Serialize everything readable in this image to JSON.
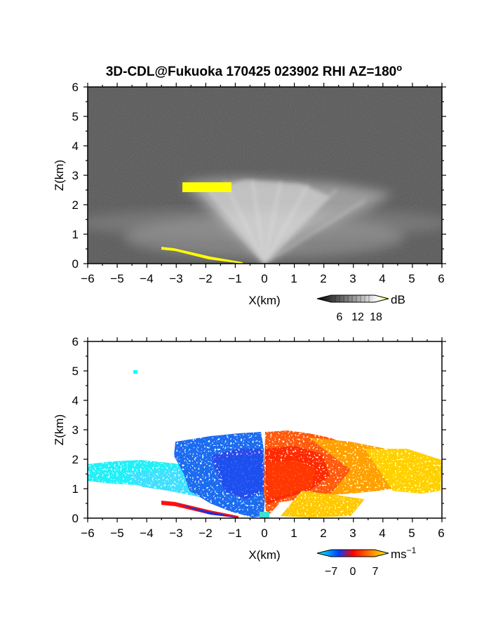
{
  "figure": {
    "title": "3D-CDL@Fukuoka 170425 023902 RHI AZ=180",
    "title_superscript": "o"
  },
  "chart_data": [
    {
      "type": "heatmap",
      "name": "reflectivity-panel",
      "xlabel": "X(km)",
      "ylabel": "Z(km)",
      "xlim": [
        -6,
        6
      ],
      "ylim": [
        0,
        6
      ],
      "xticks": [
        "−6",
        "−5",
        "−4",
        "−3",
        "−2",
        "−1",
        "0",
        "1",
        "2",
        "3",
        "4",
        "5",
        "6"
      ],
      "yticks": [
        "0",
        "1",
        "2",
        "3",
        "4",
        "5",
        "6"
      ],
      "colormap": "grayscale",
      "colorbar": {
        "unit": "dB",
        "ticks": [
          "6",
          "12",
          "18"
        ],
        "tick_values": [
          6,
          12,
          18
        ],
        "range": [
          0,
          21
        ],
        "colors": [
          "#000000",
          "#ffffff",
          "#ffff00"
        ]
      },
      "features": [
        {
          "label": "yellow high-return band",
          "x": [
            -2.8,
            -1.2
          ],
          "z": [
            2.4,
            2.75
          ],
          "color": "#ffff00"
        },
        {
          "label": "bright fan",
          "x": [
            -2.5,
            3
          ],
          "z": [
            0.1,
            2.5
          ],
          "color": "#d0d0d0"
        },
        {
          "label": "yellow low-level streak",
          "x": [
            -3.5,
            -0.7
          ],
          "z": [
            0,
            0.55
          ],
          "color": "#ffff00"
        }
      ],
      "grid": false
    },
    {
      "type": "heatmap",
      "name": "velocity-panel",
      "xlabel": "X(km)",
      "ylabel": "Z(km)",
      "xlim": [
        -6,
        6
      ],
      "ylim": [
        0,
        6
      ],
      "xticks": [
        "−6",
        "−5",
        "−4",
        "−3",
        "−2",
        "−1",
        "0",
        "1",
        "2",
        "3",
        "4",
        "5",
        "6"
      ],
      "yticks": [
        "0",
        "1",
        "2",
        "3",
        "4",
        "5",
        "6"
      ],
      "colormap": "cyan-blue-red-yellow",
      "colorbar": {
        "unit": "ms",
        "unit_superscript": "−1",
        "ticks": [
          "−7",
          "0",
          "7"
        ],
        "tick_values": [
          -7,
          0,
          7
        ],
        "range": [
          -10,
          10
        ],
        "colors": [
          "#00ffff",
          "#0040ff",
          "#ff0000",
          "#ff8000",
          "#ffff00"
        ]
      },
      "features": [
        {
          "label": "approaching (cyan) region",
          "x": [
            -6,
            -1.5
          ],
          "z": [
            0.9,
            1.8
          ],
          "velocity": -9
        },
        {
          "label": "approaching (blue) region",
          "x": [
            -3,
            0
          ],
          "z": [
            0.3,
            2.75
          ],
          "velocity": -6
        },
        {
          "label": "receding (red-orange) region",
          "x": [
            0,
            3
          ],
          "z": [
            0,
            2.95
          ],
          "velocity": 3
        },
        {
          "label": "receding (yellow) region",
          "x": [
            2.5,
            6
          ],
          "z": [
            0.5,
            2.3
          ],
          "velocity": 8
        },
        {
          "label": "isolated cyan point",
          "x": [
            -4.45,
            -4.45
          ],
          "z": [
            4.95,
            4.95
          ],
          "velocity": -9
        }
      ],
      "grid": false
    }
  ]
}
